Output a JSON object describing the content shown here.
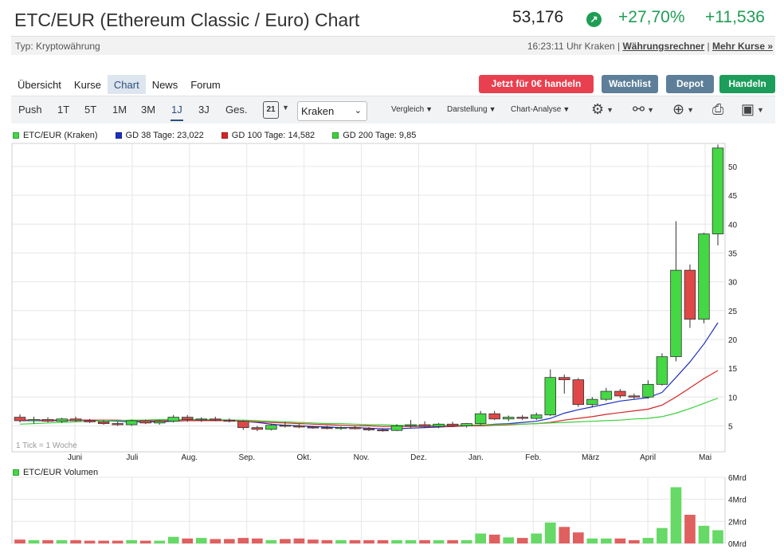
{
  "header": {
    "title": "ETC/EUR (Ethereum Classic / Euro) Chart",
    "price": "53,176",
    "change_pct": "+27,70%",
    "change_abs": "+11,536",
    "arrow_icon": "arrow-up-right-icon",
    "accent_green": "#1f9d55"
  },
  "subbar": {
    "type": "Typ: Kryptowährung",
    "time_source": "16:23:11 Uhr Kraken |",
    "link_rechner": "Währungsrechner",
    "sep": "|",
    "link_kurse": "Mehr Kurse »"
  },
  "tabs": [
    "Übersicht",
    "Kurse",
    "Chart",
    "News",
    "Forum"
  ],
  "active_tab": "Chart",
  "buttons": {
    "trade": "Jetzt für 0€ handeln",
    "watchlist": "Watchlist",
    "depot": "Depot",
    "handeln": "Handeln",
    "trade_color": "#e8404f",
    "watch_color": "#5e7f99",
    "depot_color": "#5e7f99",
    "handeln_color": "#1d9d5b"
  },
  "toolbar": {
    "ranges": [
      "Push",
      "1T",
      "5T",
      "1M",
      "3M",
      "1J",
      "3J",
      "Ges."
    ],
    "active_range": "1J",
    "calendar_day": "21",
    "exchange": "Kraken",
    "vergleich": "Vergleich",
    "darstellung": "Darstellung",
    "analyse": "Chart-Analyse"
  },
  "legend": [
    {
      "label": "ETC/EUR (Kraken)",
      "color": "#44d844"
    },
    {
      "label": "GD 38 Tage: 23,022",
      "color": "#1e2fbf"
    },
    {
      "label": "GD 100 Tage: 14,582",
      "color": "#d62525"
    },
    {
      "label": "GD 200 Tage: 9,85",
      "color": "#3ad23a"
    }
  ],
  "tick_note": "1 Tick = 1 Woche",
  "volume_legend": "ETC/EUR Volumen",
  "chart_data": [
    {
      "type": "candlestick",
      "x_labels": [
        "Juni",
        "Juli",
        "Aug.",
        "Sep.",
        "Okt.",
        "Nov.",
        "Dez.",
        "Jan.",
        "Feb.",
        "März",
        "April",
        "Mai"
      ],
      "y_ticks": [
        5,
        10,
        15,
        20,
        25,
        30,
        35,
        40,
        45,
        50
      ],
      "ylim": [
        0.5,
        54
      ],
      "up_color": "#44d844",
      "down_color": "#e04848",
      "candles": [
        {
          "o": 6.5,
          "h": 7.0,
          "l": 5.6,
          "c": 5.9
        },
        {
          "o": 5.9,
          "h": 6.6,
          "l": 5.4,
          "c": 6.1
        },
        {
          "o": 6.1,
          "h": 6.5,
          "l": 5.6,
          "c": 5.8
        },
        {
          "o": 5.8,
          "h": 6.4,
          "l": 5.5,
          "c": 6.2
        },
        {
          "o": 6.2,
          "h": 6.6,
          "l": 5.7,
          "c": 5.9
        },
        {
          "o": 5.9,
          "h": 6.2,
          "l": 5.5,
          "c": 5.7
        },
        {
          "o": 5.7,
          "h": 6.0,
          "l": 5.2,
          "c": 5.4
        },
        {
          "o": 5.4,
          "h": 5.7,
          "l": 5.0,
          "c": 5.2
        },
        {
          "o": 5.2,
          "h": 6.1,
          "l": 5.0,
          "c": 5.9
        },
        {
          "o": 5.9,
          "h": 6.1,
          "l": 5.3,
          "c": 5.5
        },
        {
          "o": 5.5,
          "h": 6.0,
          "l": 5.2,
          "c": 5.8
        },
        {
          "o": 5.8,
          "h": 6.9,
          "l": 5.6,
          "c": 6.5
        },
        {
          "o": 6.5,
          "h": 6.9,
          "l": 5.7,
          "c": 6.1
        },
        {
          "o": 6.1,
          "h": 6.5,
          "l": 5.7,
          "c": 6.2
        },
        {
          "o": 6.2,
          "h": 6.6,
          "l": 5.8,
          "c": 6.0
        },
        {
          "o": 6.0,
          "h": 6.3,
          "l": 5.6,
          "c": 5.8
        },
        {
          "o": 5.8,
          "h": 6.0,
          "l": 4.3,
          "c": 4.7
        },
        {
          "o": 4.7,
          "h": 5.0,
          "l": 4.1,
          "c": 4.4
        },
        {
          "o": 4.4,
          "h": 5.4,
          "l": 4.2,
          "c": 5.1
        },
        {
          "o": 5.1,
          "h": 5.7,
          "l": 4.7,
          "c": 5.0
        },
        {
          "o": 5.0,
          "h": 5.3,
          "l": 4.6,
          "c": 4.8
        },
        {
          "o": 4.8,
          "h": 5.0,
          "l": 4.5,
          "c": 4.7
        },
        {
          "o": 4.7,
          "h": 5.0,
          "l": 4.4,
          "c": 4.6
        },
        {
          "o": 4.6,
          "h": 4.9,
          "l": 4.3,
          "c": 4.7
        },
        {
          "o": 4.7,
          "h": 5.0,
          "l": 4.4,
          "c": 4.5
        },
        {
          "o": 4.5,
          "h": 4.8,
          "l": 4.1,
          "c": 4.3
        },
        {
          "o": 4.3,
          "h": 4.6,
          "l": 4.0,
          "c": 4.2
        },
        {
          "o": 4.2,
          "h": 5.3,
          "l": 4.1,
          "c": 5.0
        },
        {
          "o": 5.0,
          "h": 6.0,
          "l": 4.6,
          "c": 5.2
        },
        {
          "o": 5.2,
          "h": 5.8,
          "l": 4.7,
          "c": 4.9
        },
        {
          "o": 4.9,
          "h": 5.5,
          "l": 4.6,
          "c": 5.3
        },
        {
          "o": 5.3,
          "h": 5.7,
          "l": 4.8,
          "c": 5.0
        },
        {
          "o": 5.0,
          "h": 5.5,
          "l": 4.7,
          "c": 5.4
        },
        {
          "o": 5.4,
          "h": 7.6,
          "l": 5.2,
          "c": 7.1
        },
        {
          "o": 7.1,
          "h": 7.6,
          "l": 6.0,
          "c": 6.2
        },
        {
          "o": 6.2,
          "h": 6.8,
          "l": 5.8,
          "c": 6.5
        },
        {
          "o": 6.5,
          "h": 6.9,
          "l": 6.0,
          "c": 6.3
        },
        {
          "o": 6.3,
          "h": 7.3,
          "l": 6.0,
          "c": 6.9
        },
        {
          "o": 6.9,
          "h": 14.8,
          "l": 6.7,
          "c": 13.4
        },
        {
          "o": 13.4,
          "h": 13.9,
          "l": 10.6,
          "c": 13.0
        },
        {
          "o": 13.0,
          "h": 13.3,
          "l": 8.3,
          "c": 8.7
        },
        {
          "o": 8.7,
          "h": 10.0,
          "l": 8.2,
          "c": 9.6
        },
        {
          "o": 9.6,
          "h": 11.6,
          "l": 9.3,
          "c": 11.0
        },
        {
          "o": 11.0,
          "h": 11.4,
          "l": 9.8,
          "c": 10.2
        },
        {
          "o": 10.2,
          "h": 10.6,
          "l": 9.6,
          "c": 10.0
        },
        {
          "o": 10.0,
          "h": 12.9,
          "l": 9.7,
          "c": 12.2
        },
        {
          "o": 12.2,
          "h": 17.6,
          "l": 12.0,
          "c": 17.0
        },
        {
          "o": 17.0,
          "h": 40.5,
          "l": 16.2,
          "c": 32.0
        },
        {
          "o": 32.0,
          "h": 33.0,
          "l": 22.0,
          "c": 23.5
        },
        {
          "o": 23.5,
          "h": 38.5,
          "l": 22.8,
          "c": 38.3
        },
        {
          "o": 38.3,
          "h": 53.8,
          "l": 36.3,
          "c": 53.2
        }
      ],
      "moving_averages": [
        {
          "name": "GD 38 Tage",
          "color": "#1e2fbf",
          "values": [
            5.9,
            5.9,
            5.9,
            5.9,
            6.0,
            6.0,
            5.9,
            5.8,
            5.7,
            5.7,
            5.7,
            5.8,
            5.9,
            6.0,
            6.0,
            6.0,
            5.8,
            5.6,
            5.3,
            5.1,
            5.0,
            4.9,
            4.8,
            4.7,
            4.7,
            4.6,
            4.5,
            4.5,
            4.6,
            4.7,
            4.8,
            4.9,
            5.0,
            5.1,
            5.3,
            5.4,
            5.6,
            5.8,
            6.3,
            7.2,
            7.8,
            8.3,
            8.8,
            9.3,
            9.6,
            9.9,
            10.8,
            13.4,
            16.1,
            19.2,
            22.9
          ]
        },
        {
          "name": "GD 100 Tage",
          "color": "#d62525",
          "values": [
            6.0,
            6.0,
            6.0,
            6.0,
            6.0,
            6.0,
            6.0,
            6.0,
            5.9,
            5.9,
            5.9,
            5.9,
            5.9,
            5.9,
            5.9,
            5.9,
            5.8,
            5.7,
            5.6,
            5.5,
            5.4,
            5.3,
            5.2,
            5.1,
            5.0,
            5.0,
            4.9,
            4.9,
            4.9,
            4.9,
            4.9,
            4.9,
            5.0,
            5.0,
            5.1,
            5.2,
            5.3,
            5.4,
            5.6,
            6.0,
            6.3,
            6.6,
            7.0,
            7.3,
            7.6,
            7.9,
            8.6,
            10.0,
            11.6,
            13.2,
            14.6
          ]
        },
        {
          "name": "GD 200 Tage",
          "color": "#3ad23a",
          "values": [
            5.3,
            5.4,
            5.5,
            5.6,
            5.7,
            5.8,
            5.9,
            5.9,
            6.0,
            6.0,
            6.1,
            6.1,
            6.1,
            6.1,
            6.1,
            6.0,
            6.0,
            5.9,
            5.8,
            5.7,
            5.6,
            5.5,
            5.4,
            5.4,
            5.3,
            5.2,
            5.2,
            5.1,
            5.1,
            5.1,
            5.1,
            5.1,
            5.1,
            5.2,
            5.2,
            5.3,
            5.3,
            5.4,
            5.5,
            5.6,
            5.7,
            5.8,
            5.9,
            6.0,
            6.2,
            6.3,
            6.6,
            7.2,
            8.0,
            8.9,
            9.8
          ]
        }
      ]
    },
    {
      "type": "bar",
      "name": "ETC/EUR Volumen",
      "y_ticks": [
        "6Mrd",
        "4Mrd",
        "2Mrd",
        "0Mrd"
      ],
      "ylim": [
        0,
        6
      ],
      "values": [
        0.35,
        0.3,
        0.3,
        0.3,
        0.3,
        0.25,
        0.25,
        0.25,
        0.3,
        0.25,
        0.25,
        0.6,
        0.45,
        0.5,
        0.4,
        0.4,
        0.5,
        0.45,
        0.3,
        0.4,
        0.45,
        0.35,
        0.3,
        0.3,
        0.3,
        0.3,
        0.3,
        0.3,
        0.3,
        0.3,
        0.3,
        0.3,
        0.3,
        0.9,
        0.8,
        0.55,
        0.5,
        0.9,
        1.9,
        1.5,
        1.0,
        0.45,
        0.45,
        0.45,
        0.3,
        0.5,
        1.4,
        5.1,
        2.6,
        1.6,
        1.2
      ],
      "up_color": "#66d966",
      "down_color": "#e06060"
    }
  ]
}
